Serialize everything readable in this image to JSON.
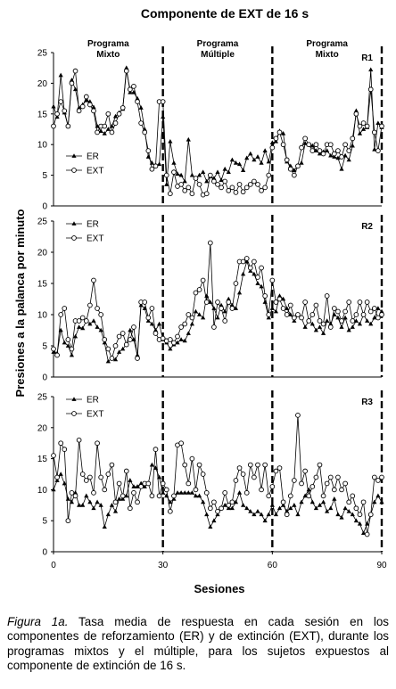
{
  "title": "Componente de EXT de 16 s",
  "ylabel": "Presiones a la palanca por minuto",
  "xlabel": "Sesiones",
  "caption": {
    "figure_label": "Figura 1a.",
    "text": " Tasa media de respuesta en cada sesión en los componentes de reforzamiento (ER) y de extinción (EXT), durante los programas mixtos y el múltiple, para los sujetos expuestos al componente de extinción de 16 s."
  },
  "chart_data": [
    {
      "type": "line",
      "subject": "R1",
      "phase_labels": [
        [
          "Programa",
          "Mixto"
        ],
        [
          "Programa",
          "Múltiple"
        ],
        [
          "Programa",
          "Mixto"
        ]
      ],
      "phase_boundaries": [
        30,
        60
      ],
      "xlim": [
        0,
        90
      ],
      "ylim": [
        0,
        25
      ],
      "yticks": [
        0,
        5,
        10,
        15,
        20,
        25
      ],
      "legend": "left-middle",
      "series": [
        {
          "name": "ER",
          "marker": "triangle",
          "values": [
            16.2,
            14.5,
            21.3,
            15.2,
            13,
            20.5,
            19,
            16,
            16.5,
            17.2,
            17,
            16.1,
            13,
            12.2,
            11.8,
            12.5,
            13,
            14.6,
            15.2,
            15.8,
            22.5,
            18.5,
            18.5,
            17.5,
            16,
            12.5,
            8,
            7,
            6.5,
            6.8,
            14.5,
            3.5,
            10.5,
            7,
            5.2,
            5,
            4,
            10.8,
            5,
            4.5,
            5,
            5.5,
            4,
            4.8,
            4.5,
            5.5,
            4.2,
            6,
            5.5,
            7.5,
            7,
            6.8,
            5.8,
            7.8,
            8.5,
            7.5,
            8,
            7,
            9,
            7.2,
            10.3,
            10.5,
            12.2,
            11.8,
            7.2,
            6.5,
            5.8,
            6.5,
            7,
            10.2,
            10,
            9.8,
            9,
            8.5,
            8.8,
            9,
            8.2,
            8,
            7.8,
            6,
            8.2,
            7.5,
            9.8,
            15.5,
            11.8,
            12.5,
            12.8,
            22.2,
            9.2,
            13.5,
            12.8
          ]
        },
        {
          "name": "EXT",
          "marker": "circle",
          "values": [
            13,
            15,
            17,
            15.5,
            13,
            20,
            22,
            15.5,
            16.2,
            17.8,
            16.5,
            15.5,
            12,
            13,
            13,
            15,
            12,
            13.5,
            15,
            16,
            22,
            19,
            19.5,
            17,
            13.5,
            12,
            9,
            6,
            6.5,
            17,
            17,
            5,
            2,
            5.5,
            3.2,
            3.5,
            2.5,
            3,
            2,
            4.5,
            3.5,
            1.8,
            2,
            5,
            4,
            3.5,
            3,
            4,
            2.5,
            3,
            2.2,
            3.5,
            2.3,
            3,
            3.5,
            4,
            3.5,
            2.5,
            3,
            5,
            9.5,
            11,
            12,
            10,
            7.5,
            6,
            5,
            6.5,
            9.5,
            11,
            10,
            9,
            10,
            9,
            8.5,
            10,
            10,
            8.5,
            9,
            8,
            10,
            9,
            11,
            15,
            13,
            13.5,
            13,
            19,
            12,
            9,
            13
          ]
        }
      ]
    },
    {
      "type": "line",
      "subject": "R2",
      "phase_boundaries": [
        30,
        60
      ],
      "xlim": [
        0,
        90
      ],
      "ylim": [
        0,
        25
      ],
      "yticks": [
        0,
        5,
        10,
        15,
        20,
        25
      ],
      "legend": "top-left",
      "series": [
        {
          "name": "ER",
          "marker": "triangle",
          "values": [
            4,
            3.8,
            7.5,
            5.5,
            5,
            3.5,
            6.5,
            8,
            7.8,
            9,
            8.5,
            9,
            8,
            7.5,
            5.5,
            2.5,
            3,
            2.8,
            4,
            4.5,
            5.2,
            7.5,
            6,
            3.5,
            11.5,
            11,
            9,
            8.5,
            7.5,
            8.5,
            6,
            5.5,
            4.5,
            5.2,
            5.5,
            6,
            5.8,
            7,
            8.5,
            10.5,
            10,
            9.5,
            13,
            12,
            11,
            9.5,
            11.5,
            10.5,
            12.5,
            11.5,
            11,
            13.5,
            16.5,
            18.5,
            17,
            16.5,
            15,
            14.5,
            12,
            9.5,
            11,
            10.5,
            13,
            12.5,
            11,
            10,
            9,
            10,
            9.5,
            8,
            9,
            8.5,
            7.5,
            8,
            7,
            9,
            8.5,
            10,
            9.5,
            8,
            9.5,
            7.5,
            8,
            9,
            8.5,
            10,
            9,
            8.5,
            9.5,
            11,
            10.5
          ]
        },
        {
          "name": "EXT",
          "marker": "circle",
          "values": [
            4.5,
            3.5,
            10,
            11,
            6,
            4.5,
            9,
            9,
            9.5,
            9,
            11.5,
            15.5,
            11,
            10,
            6,
            4.5,
            3,
            5,
            6.5,
            7,
            5.2,
            6,
            8,
            3,
            12,
            12,
            9.5,
            11,
            7,
            6,
            6.2,
            5.8,
            6,
            5.5,
            6.5,
            8,
            8.5,
            10,
            9.5,
            13.5,
            14,
            15.5,
            12,
            21.5,
            8,
            12,
            11,
            9,
            12,
            11,
            15,
            18.5,
            18.5,
            19,
            17.5,
            18.5,
            16,
            17.5,
            13,
            10,
            15.5,
            12,
            12.5,
            11,
            10,
            11.5,
            9.5,
            10,
            9.5,
            12,
            9,
            10,
            11.5,
            9,
            8.5,
            13,
            8,
            11,
            10.5,
            9,
            10.5,
            12,
            9,
            10,
            12,
            10,
            12,
            10.5,
            11,
            9.5,
            10
          ]
        }
      ]
    },
    {
      "type": "line",
      "subject": "R3",
      "phase_boundaries": [
        30,
        60
      ],
      "xlim": [
        0,
        90
      ],
      "ylim": [
        0,
        25
      ],
      "xticks": [
        0,
        30,
        60,
        90
      ],
      "yticks": [
        0,
        5,
        10,
        15,
        20,
        25
      ],
      "legend": "top-left",
      "series": [
        {
          "name": "ER",
          "marker": "triangle",
          "values": [
            10,
            11.5,
            12.5,
            11,
            8.5,
            8,
            9.5,
            7.5,
            7.5,
            9,
            8,
            7,
            8,
            7.5,
            4,
            6,
            7.5,
            6.5,
            8.5,
            8.5,
            9,
            11.5,
            10.5,
            10.5,
            11,
            10.5,
            11,
            14,
            13.5,
            12,
            9.5,
            9,
            8,
            8.5,
            9.5,
            9.5,
            9.5,
            9.5,
            9.5,
            9,
            9,
            8,
            6,
            4,
            5,
            6,
            7,
            7.5,
            7,
            7,
            8,
            9.5,
            7.5,
            7,
            6.5,
            6,
            6.5,
            6,
            5,
            6,
            7.5,
            6,
            7,
            7.5,
            6.5,
            7,
            7.5,
            6,
            8,
            9,
            10,
            8,
            7,
            7.5,
            8,
            6.5,
            7,
            8.5,
            6,
            5.5,
            7,
            6.5,
            6,
            5,
            4.5,
            3,
            4.5,
            6,
            8,
            9,
            8
          ]
        },
        {
          "name": "EXT",
          "marker": "circle",
          "values": [
            15.5,
            12,
            17.5,
            16.5,
            5,
            9.5,
            9,
            18,
            12.5,
            11.5,
            12,
            9.5,
            17.5,
            12,
            10,
            12.5,
            14,
            8,
            11,
            9,
            13,
            7,
            9.5,
            8,
            10.5,
            11,
            11,
            9,
            16.5,
            9,
            11,
            10,
            6.5,
            9,
            17.2,
            17.5,
            14,
            11,
            15,
            10,
            14,
            12.5,
            9.5,
            7,
            8,
            6.5,
            7,
            9.5,
            7.5,
            8,
            11.5,
            13.5,
            12.5,
            9.5,
            14,
            12,
            14,
            10,
            14,
            9,
            10.5,
            13,
            13.5,
            8,
            6,
            9,
            11.5,
            22,
            11,
            13,
            9,
            10.5,
            12,
            14,
            9,
            11,
            12,
            10,
            12,
            10,
            11,
            8,
            9,
            7,
            6,
            8,
            2.8,
            6,
            12,
            11.5,
            12
          ]
        }
      ]
    }
  ]
}
